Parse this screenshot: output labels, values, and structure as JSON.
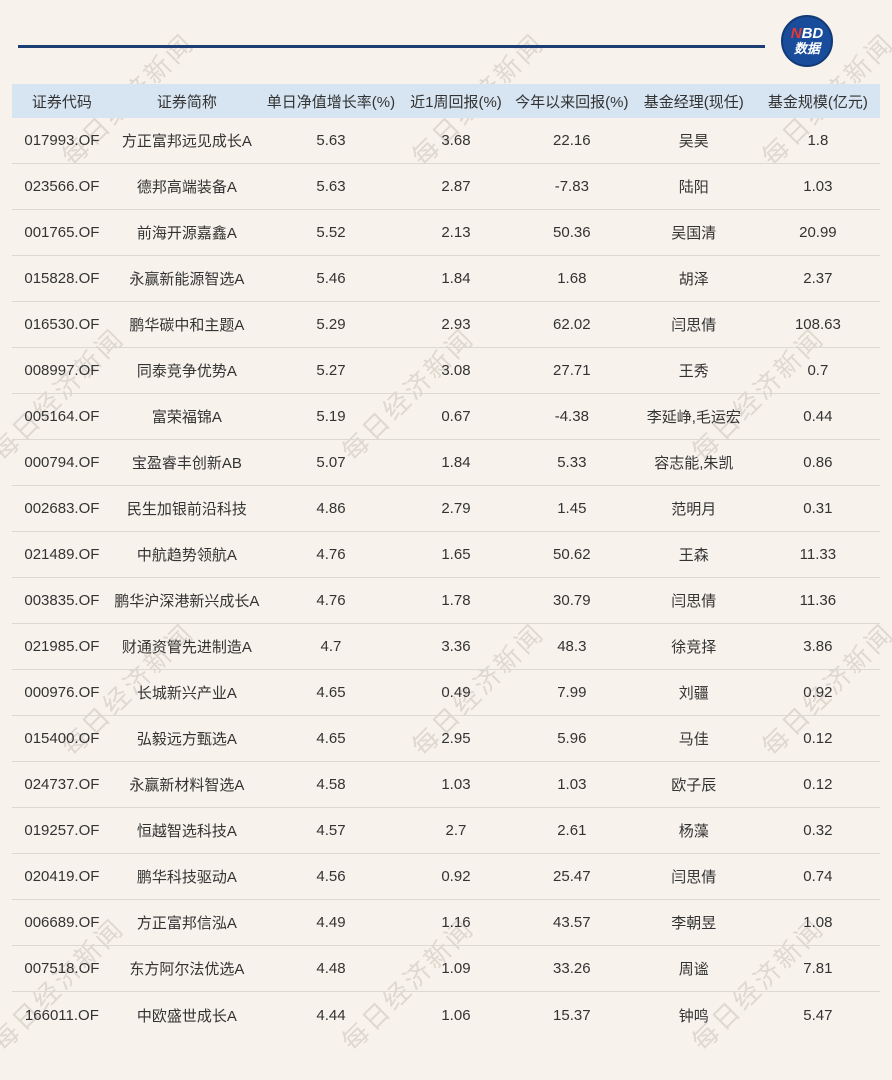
{
  "logo": {
    "line1_red": "N",
    "line1_rest": "BD",
    "line2": "数据",
    "circle_color": "#1a4c9c",
    "n_color": "#e8392e"
  },
  "watermark": {
    "text": "每日经济新闻"
  },
  "colors": {
    "page_background": "#f7f2ec",
    "header_background": "#d7e4f1",
    "top_rule": "#1d3e74",
    "row_separator": "#dcd8d2",
    "text": "#333333"
  },
  "chart_data": {
    "type": "table",
    "columns": [
      "证券代码",
      "证券简称",
      "单日净值增长率(%)",
      "近1周回报(%)",
      "今年以来回报(%)",
      "基金经理(现任)",
      "基金规模(亿元)"
    ],
    "rows": [
      {
        "code": "017993.OF",
        "name": "方正富邦远见成长A",
        "daily": "5.63",
        "week": "3.68",
        "ytd": "22.16",
        "manager": "吴昊",
        "size": "1.8"
      },
      {
        "code": "023566.OF",
        "name": "德邦高端装备A",
        "daily": "5.63",
        "week": "2.87",
        "ytd": "-7.83",
        "manager": "陆阳",
        "size": "1.03"
      },
      {
        "code": "001765.OF",
        "name": "前海开源嘉鑫A",
        "daily": "5.52",
        "week": "2.13",
        "ytd": "50.36",
        "manager": "吴国清",
        "size": "20.99"
      },
      {
        "code": "015828.OF",
        "name": "永赢新能源智选A",
        "daily": "5.46",
        "week": "1.84",
        "ytd": "1.68",
        "manager": "胡泽",
        "size": "2.37"
      },
      {
        "code": "016530.OF",
        "name": "鹏华碳中和主题A",
        "daily": "5.29",
        "week": "2.93",
        "ytd": "62.02",
        "manager": "闫思倩",
        "size": "108.63"
      },
      {
        "code": "008997.OF",
        "name": "同泰竞争优势A",
        "daily": "5.27",
        "week": "3.08",
        "ytd": "27.71",
        "manager": "王秀",
        "size": "0.7"
      },
      {
        "code": "005164.OF",
        "name": "富荣福锦A",
        "daily": "5.19",
        "week": "0.67",
        "ytd": "-4.38",
        "manager": "李延峥,毛运宏",
        "size": "0.44"
      },
      {
        "code": "000794.OF",
        "name": "宝盈睿丰创新AB",
        "daily": "5.07",
        "week": "1.84",
        "ytd": "5.33",
        "manager": "容志能,朱凯",
        "size": "0.86"
      },
      {
        "code": "002683.OF",
        "name": "民生加银前沿科技",
        "daily": "4.86",
        "week": "2.79",
        "ytd": "1.45",
        "manager": "范明月",
        "size": "0.31"
      },
      {
        "code": "021489.OF",
        "name": "中航趋势领航A",
        "daily": "4.76",
        "week": "1.65",
        "ytd": "50.62",
        "manager": "王森",
        "size": "11.33"
      },
      {
        "code": "003835.OF",
        "name": "鹏华沪深港新兴成长A",
        "daily": "4.76",
        "week": "1.78",
        "ytd": "30.79",
        "manager": "闫思倩",
        "size": "11.36"
      },
      {
        "code": "021985.OF",
        "name": "财通资管先进制造A",
        "daily": "4.7",
        "week": "3.36",
        "ytd": "48.3",
        "manager": "徐竞择",
        "size": "3.86"
      },
      {
        "code": "000976.OF",
        "name": "长城新兴产业A",
        "daily": "4.65",
        "week": "0.49",
        "ytd": "7.99",
        "manager": "刘疆",
        "size": "0.92"
      },
      {
        "code": "015400.OF",
        "name": "弘毅远方甄选A",
        "daily": "4.65",
        "week": "2.95",
        "ytd": "5.96",
        "manager": "马佳",
        "size": "0.12"
      },
      {
        "code": "024737.OF",
        "name": "永赢新材料智选A",
        "daily": "4.58",
        "week": "1.03",
        "ytd": "1.03",
        "manager": "欧子辰",
        "size": "0.12"
      },
      {
        "code": "019257.OF",
        "name": "恒越智选科技A",
        "daily": "4.57",
        "week": "2.7",
        "ytd": "2.61",
        "manager": "杨藻",
        "size": "0.32"
      },
      {
        "code": "020419.OF",
        "name": "鹏华科技驱动A",
        "daily": "4.56",
        "week": "0.92",
        "ytd": "25.47",
        "manager": "闫思倩",
        "size": "0.74"
      },
      {
        "code": "006689.OF",
        "name": "方正富邦信泓A",
        "daily": "4.49",
        "week": "1.16",
        "ytd": "43.57",
        "manager": "李朝昱",
        "size": "1.08"
      },
      {
        "code": "007518.OF",
        "name": "东方阿尔法优选A",
        "daily": "4.48",
        "week": "1.09",
        "ytd": "33.26",
        "manager": "周谧",
        "size": "7.81"
      },
      {
        "code": "166011.OF",
        "name": "中欧盛世成长A",
        "daily": "4.44",
        "week": "1.06",
        "ytd": "15.37",
        "manager": "钟鸣",
        "size": "5.47"
      }
    ]
  }
}
